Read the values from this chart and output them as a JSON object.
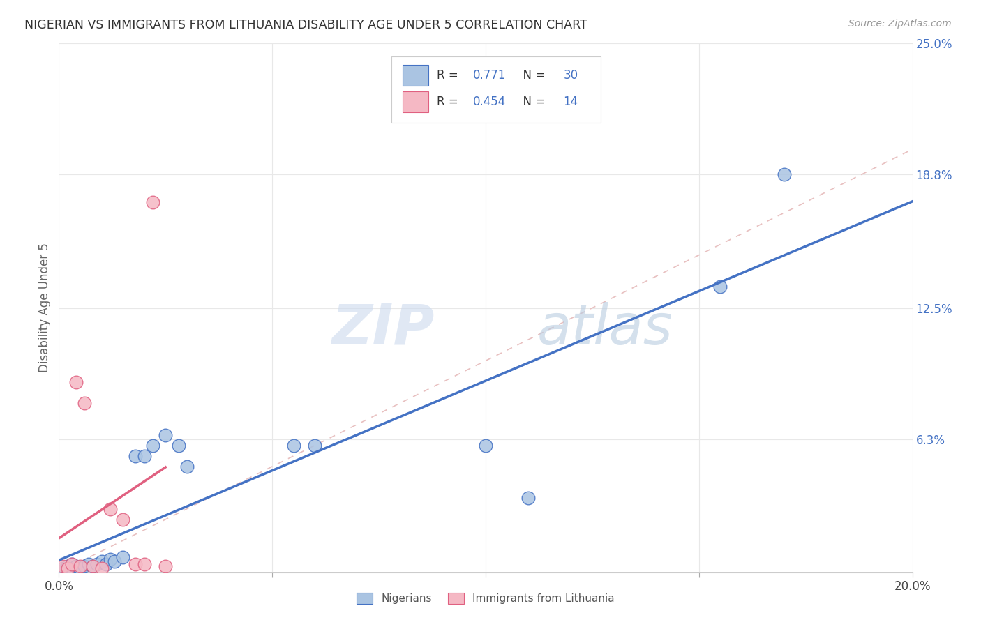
{
  "title": "NIGERIAN VS IMMIGRANTS FROM LITHUANIA DISABILITY AGE UNDER 5 CORRELATION CHART",
  "source": "Source: ZipAtlas.com",
  "ylabel": "Disability Age Under 5",
  "xlim": [
    0.0,
    0.2
  ],
  "ylim": [
    0.0,
    0.25
  ],
  "yticks": [
    0.0,
    0.063,
    0.125,
    0.188,
    0.25
  ],
  "ytick_labels": [
    "",
    "6.3%",
    "12.5%",
    "18.8%",
    "25.0%"
  ],
  "xtick_positions": [
    0.0,
    0.05,
    0.1,
    0.15,
    0.2
  ],
  "xtick_labels": [
    "0.0%",
    "",
    "",
    "",
    "20.0%"
  ],
  "nigerian_x": [
    0.001,
    0.001,
    0.002,
    0.002,
    0.003,
    0.003,
    0.004,
    0.005,
    0.005,
    0.006,
    0.007,
    0.008,
    0.009,
    0.01,
    0.011,
    0.012,
    0.013,
    0.015,
    0.018,
    0.02,
    0.022,
    0.025,
    0.028,
    0.03,
    0.055,
    0.06,
    0.1,
    0.11,
    0.155,
    0.17
  ],
  "nigerian_y": [
    0.001,
    0.002,
    0.001,
    0.003,
    0.002,
    0.004,
    0.003,
    0.001,
    0.002,
    0.003,
    0.004,
    0.003,
    0.004,
    0.005,
    0.004,
    0.006,
    0.005,
    0.007,
    0.055,
    0.055,
    0.06,
    0.065,
    0.06,
    0.05,
    0.06,
    0.06,
    0.06,
    0.035,
    0.135,
    0.188
  ],
  "lithuania_x": [
    0.001,
    0.002,
    0.003,
    0.004,
    0.005,
    0.006,
    0.008,
    0.01,
    0.012,
    0.015,
    0.018,
    0.02,
    0.022,
    0.025
  ],
  "lithuania_y": [
    0.003,
    0.002,
    0.004,
    0.09,
    0.003,
    0.08,
    0.003,
    0.002,
    0.03,
    0.025,
    0.004,
    0.004,
    0.175,
    0.003
  ],
  "R_nigerian": 0.771,
  "N_nigerian": 30,
  "R_lithuania": 0.454,
  "N_lithuania": 14,
  "color_nigerian": "#aac4e2",
  "color_lithuania": "#f5b8c4",
  "line_color_nigerian": "#4472c4",
  "line_color_lithuania": "#e06080",
  "diagonal_color": "#e8c0c0",
  "watermark_zip": "ZIP",
  "watermark_atlas": "atlas",
  "legend_blue": "#4472c4",
  "background_color": "#ffffff",
  "grid_color": "#e8e8e8"
}
